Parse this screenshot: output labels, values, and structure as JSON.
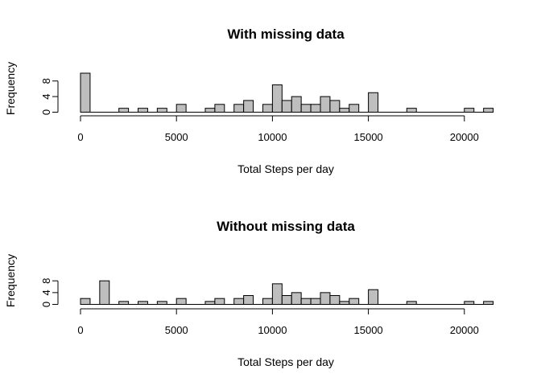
{
  "colors": {
    "bar_fill": "#bebebe",
    "bar_stroke": "#000000",
    "background": "#ffffff"
  },
  "chart_data": [
    {
      "type": "bar",
      "title": "With missing data",
      "xlabel": "Total Steps per day",
      "ylabel": "Frequency",
      "bin_width": 500,
      "xlim": [
        0,
        21500
      ],
      "ylim": [
        0,
        10
      ],
      "x_ticks": [
        0,
        5000,
        10000,
        15000,
        20000
      ],
      "y_ticks": [
        0,
        4,
        8
      ],
      "grid": false,
      "legend": "none",
      "bins": [
        {
          "x0": 0,
          "count": 10
        },
        {
          "x0": 2000,
          "count": 1
        },
        {
          "x0": 3000,
          "count": 1
        },
        {
          "x0": 4000,
          "count": 1
        },
        {
          "x0": 5000,
          "count": 2
        },
        {
          "x0": 6500,
          "count": 1
        },
        {
          "x0": 7000,
          "count": 2
        },
        {
          "x0": 8000,
          "count": 2
        },
        {
          "x0": 8500,
          "count": 3
        },
        {
          "x0": 9500,
          "count": 2
        },
        {
          "x0": 10000,
          "count": 7
        },
        {
          "x0": 10500,
          "count": 3
        },
        {
          "x0": 11000,
          "count": 4
        },
        {
          "x0": 11500,
          "count": 2
        },
        {
          "x0": 12000,
          "count": 2
        },
        {
          "x0": 12500,
          "count": 4
        },
        {
          "x0": 13000,
          "count": 3
        },
        {
          "x0": 13500,
          "count": 1
        },
        {
          "x0": 14000,
          "count": 2
        },
        {
          "x0": 15000,
          "count": 5
        },
        {
          "x0": 17000,
          "count": 1
        },
        {
          "x0": 20000,
          "count": 1
        },
        {
          "x0": 21000,
          "count": 1
        }
      ]
    },
    {
      "type": "bar",
      "title": "Without missing data",
      "xlabel": "Total Steps per day",
      "ylabel": "Frequency",
      "bin_width": 500,
      "xlim": [
        0,
        21500
      ],
      "ylim": [
        0,
        8
      ],
      "x_ticks": [
        0,
        5000,
        10000,
        15000,
        20000
      ],
      "y_ticks": [
        0,
        4,
        8
      ],
      "grid": false,
      "legend": "none",
      "bins": [
        {
          "x0": 0,
          "count": 2
        },
        {
          "x0": 1000,
          "count": 8
        },
        {
          "x0": 2000,
          "count": 1
        },
        {
          "x0": 3000,
          "count": 1
        },
        {
          "x0": 4000,
          "count": 1
        },
        {
          "x0": 5000,
          "count": 2
        },
        {
          "x0": 6500,
          "count": 1
        },
        {
          "x0": 7000,
          "count": 2
        },
        {
          "x0": 8000,
          "count": 2
        },
        {
          "x0": 8500,
          "count": 3
        },
        {
          "x0": 9500,
          "count": 2
        },
        {
          "x0": 10000,
          "count": 7
        },
        {
          "x0": 10500,
          "count": 3
        },
        {
          "x0": 11000,
          "count": 4
        },
        {
          "x0": 11500,
          "count": 2
        },
        {
          "x0": 12000,
          "count": 2
        },
        {
          "x0": 12500,
          "count": 4
        },
        {
          "x0": 13000,
          "count": 3
        },
        {
          "x0": 13500,
          "count": 1
        },
        {
          "x0": 14000,
          "count": 2
        },
        {
          "x0": 15000,
          "count": 5
        },
        {
          "x0": 17000,
          "count": 1
        },
        {
          "x0": 20000,
          "count": 1
        },
        {
          "x0": 21000,
          "count": 1
        }
      ]
    }
  ]
}
